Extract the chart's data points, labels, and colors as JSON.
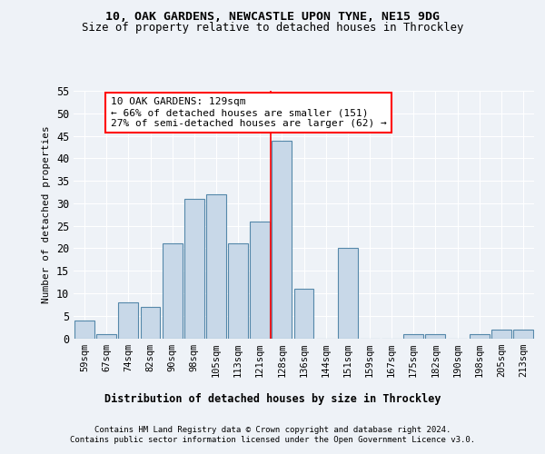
{
  "title1": "10, OAK GARDENS, NEWCASTLE UPON TYNE, NE15 9DG",
  "title2": "Size of property relative to detached houses in Throckley",
  "xlabel": "Distribution of detached houses by size in Throckley",
  "ylabel": "Number of detached properties",
  "bar_color": "#c8d8e8",
  "bar_edge_color": "#5588aa",
  "categories": [
    "59sqm",
    "67sqm",
    "74sqm",
    "82sqm",
    "90sqm",
    "98sqm",
    "105sqm",
    "113sqm",
    "121sqm",
    "128sqm",
    "136sqm",
    "144sqm",
    "151sqm",
    "159sqm",
    "167sqm",
    "175sqm",
    "182sqm",
    "190sqm",
    "198sqm",
    "205sqm",
    "213sqm"
  ],
  "values": [
    4,
    1,
    8,
    7,
    21,
    31,
    32,
    21,
    26,
    44,
    11,
    0,
    20,
    0,
    0,
    1,
    1,
    0,
    1,
    2,
    2
  ],
  "property_line_x": 8.5,
  "annotation_text": "10 OAK GARDENS: 129sqm\n← 66% of detached houses are smaller (151)\n27% of semi-detached houses are larger (62) →",
  "ylim": [
    0,
    55
  ],
  "yticks": [
    0,
    5,
    10,
    15,
    20,
    25,
    30,
    35,
    40,
    45,
    50,
    55
  ],
  "footer1": "Contains HM Land Registry data © Crown copyright and database right 2024.",
  "footer2": "Contains public sector information licensed under the Open Government Licence v3.0.",
  "background_color": "#eef2f7",
  "grid_color": "#ffffff"
}
